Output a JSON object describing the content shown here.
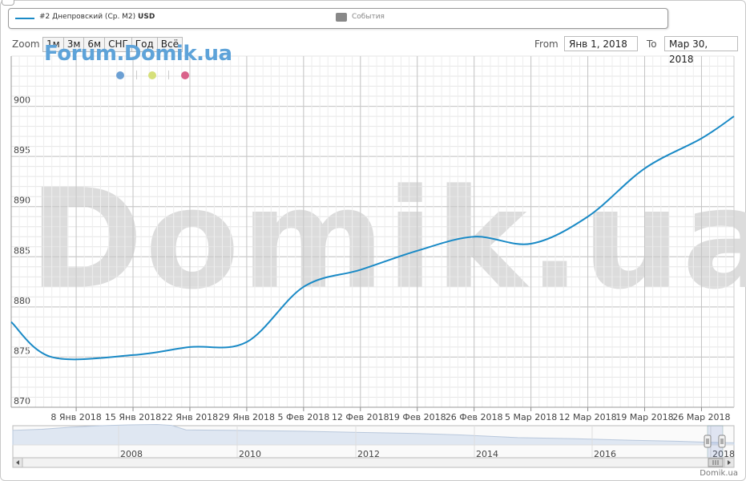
{
  "legend": {
    "series_label": "#2 Днепровский (Ср. М2)",
    "series_unit": "USD",
    "events_label": "События"
  },
  "zoom": {
    "label": "Zoom",
    "buttons": [
      "1м",
      "3м",
      "6м",
      "СНГ",
      "Год",
      "Всё"
    ]
  },
  "range": {
    "from_label": "From",
    "from_value": "Янв 1, 2018",
    "to_label": "To",
    "to_value": "Мар 30, 2018"
  },
  "brand": "Forum.Domik.ua",
  "watermark": "Domik.ua",
  "credit": "Domik.ua",
  "colors": {
    "series": "#1a8ac6",
    "dots": [
      "#6b9fd3",
      "#d6e07a",
      "#d9628a"
    ],
    "grid": "#cccccc",
    "navigator_fill": "#e3ebf5"
  },
  "chart_data": {
    "type": "line",
    "title": "",
    "xlabel": "",
    "ylabel": "",
    "ylim": [
      870,
      905
    ],
    "y_ticks": [
      870,
      875,
      880,
      885,
      890,
      895,
      900
    ],
    "x_range_days": [
      -1,
      88
    ],
    "x_ticks": [
      {
        "day": 7,
        "label": "8 Янв 2018"
      },
      {
        "day": 14,
        "label": "15 Янв 2018"
      },
      {
        "day": 21,
        "label": "22 Янв 2018"
      },
      {
        "day": 28,
        "label": "29 Янв 2018"
      },
      {
        "day": 35,
        "label": "5 Фев 2018"
      },
      {
        "day": 42,
        "label": "12 Фев 2018"
      },
      {
        "day": 49,
        "label": "19 Фев 2018"
      },
      {
        "day": 56,
        "label": "26 Фев 2018"
      },
      {
        "day": 63,
        "label": "5 Мар 2018"
      },
      {
        "day": 70,
        "label": "12 Мар 2018"
      },
      {
        "day": 77,
        "label": "19 Мар 2018"
      },
      {
        "day": 84,
        "label": "26 Мар 2018"
      }
    ],
    "series": [
      {
        "name": "#2 Днепровский (Ср. М2)",
        "x": [
          "2017-12-31",
          "2018-01-05",
          "2018-01-15",
          "2018-01-22",
          "2018-01-29",
          "2018-02-05",
          "2018-02-12",
          "2018-02-19",
          "2018-02-26",
          "2018-03-05",
          "2018-03-12",
          "2018-03-19",
          "2018-03-26",
          "2018-03-30"
        ],
        "values": [
          878.5,
          875.0,
          875.2,
          876.0,
          876.5,
          882.0,
          883.7,
          885.6,
          887.0,
          886.3,
          889.0,
          893.8,
          896.8,
          899.0
        ]
      }
    ],
    "navigator": {
      "x_ticks": [
        "2008",
        "2010",
        "2012",
        "2014",
        "2016",
        "2018"
      ]
    },
    "grid": true,
    "legend_position": "top"
  }
}
